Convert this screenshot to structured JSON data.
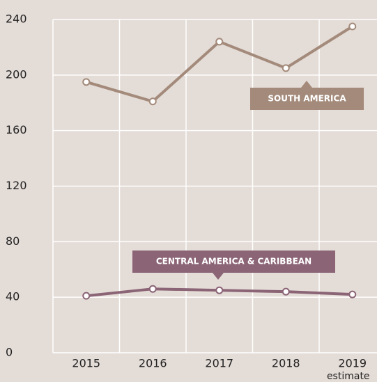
{
  "chart_data": {
    "type": "line",
    "categories": [
      "2015",
      "2016",
      "2017",
      "2018",
      "2019"
    ],
    "x_note": "estimate",
    "series": [
      {
        "name": "SOUTH AMERICA",
        "color": "#a38a7a",
        "values": [
          195,
          181,
          224,
          205,
          235
        ]
      },
      {
        "name": "CENTRAL AMERICA & CARIBBEAN",
        "color": "#8b6476",
        "values": [
          41,
          46,
          45,
          44,
          42
        ]
      }
    ],
    "ylim": [
      0,
      240
    ],
    "yticks": [
      0,
      40,
      80,
      120,
      160,
      200,
      240
    ],
    "grid": true
  }
}
